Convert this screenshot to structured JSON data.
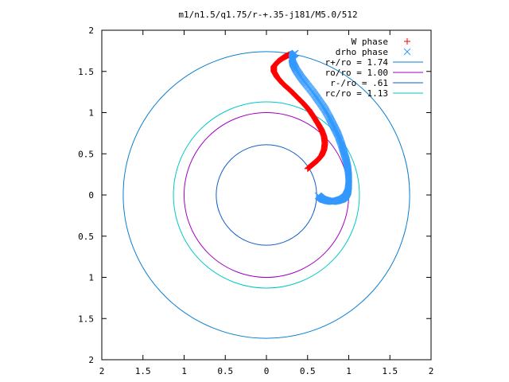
{
  "chart_data": {
    "type": "scatter",
    "title": "m1/n1.5/q1.75/r-+.35-j181/M5.0/512",
    "xlabel": "",
    "ylabel": "",
    "xlim": [
      -2,
      2
    ],
    "ylim": [
      -2,
      2
    ],
    "x_ticks": [
      "2",
      "1.5",
      "1",
      "0.5",
      "0",
      "0.5",
      "1",
      "1.5",
      "2"
    ],
    "y_ticks": [
      "2",
      "1.5",
      "1",
      "0.5",
      "0",
      "0.5",
      "1",
      "1.5",
      "2"
    ],
    "grid": false,
    "legend_position": "top-right",
    "series": [
      {
        "name": "W phase",
        "kind": "points",
        "marker": "plus",
        "color": "#ff0000",
        "points": [
          [
            0.5,
            0.32
          ],
          [
            0.56,
            0.37
          ],
          [
            0.62,
            0.42
          ],
          [
            0.67,
            0.48
          ],
          [
            0.7,
            0.55
          ],
          [
            0.71,
            0.63
          ],
          [
            0.7,
            0.71
          ],
          [
            0.67,
            0.79
          ],
          [
            0.63,
            0.86
          ],
          [
            0.58,
            0.94
          ],
          [
            0.52,
            1.03
          ],
          [
            0.45,
            1.11
          ],
          [
            0.37,
            1.19
          ],
          [
            0.29,
            1.27
          ],
          [
            0.2,
            1.35
          ],
          [
            0.13,
            1.43
          ],
          [
            0.09,
            1.5
          ],
          [
            0.09,
            1.56
          ],
          [
            0.14,
            1.62
          ],
          [
            0.21,
            1.67
          ],
          [
            0.27,
            1.7
          ],
          [
            0.3,
            1.71
          ]
        ]
      },
      {
        "name": "drho phase",
        "kind": "points",
        "marker": "cross",
        "color": "#3399ff",
        "points": [
          [
            0.63,
            -0.01
          ],
          [
            0.68,
            -0.05
          ],
          [
            0.74,
            -0.07
          ],
          [
            0.8,
            -0.08
          ],
          [
            0.86,
            -0.07
          ],
          [
            0.92,
            -0.05
          ],
          [
            0.96,
            -0.02
          ],
          [
            0.99,
            0.04
          ],
          [
            1.0,
            0.12
          ],
          [
            1.0,
            0.22
          ],
          [
            0.99,
            0.32
          ],
          [
            0.97,
            0.42
          ],
          [
            0.94,
            0.52
          ],
          [
            0.91,
            0.62
          ],
          [
            0.87,
            0.73
          ],
          [
            0.82,
            0.83
          ],
          [
            0.77,
            0.93
          ],
          [
            0.71,
            1.04
          ],
          [
            0.64,
            1.14
          ],
          [
            0.57,
            1.24
          ],
          [
            0.49,
            1.34
          ],
          [
            0.42,
            1.43
          ],
          [
            0.36,
            1.52
          ],
          [
            0.32,
            1.6
          ],
          [
            0.31,
            1.66
          ],
          [
            0.32,
            1.7
          ],
          [
            0.35,
            1.72
          ]
        ]
      },
      {
        "name": "r+/ro = 1.74",
        "kind": "circle",
        "radius": 1.74,
        "color": "#0a7fd0"
      },
      {
        "name": "ro/ro = 1.00",
        "kind": "circle",
        "radius": 1.0,
        "color": "#a000c0"
      },
      {
        "name": "r-/ro = .61",
        "kind": "circle",
        "radius": 0.61,
        "color": "#1060c8"
      },
      {
        "name": "rc/ro = 1.13",
        "kind": "circle",
        "radius": 1.13,
        "color": "#00c8c8"
      }
    ]
  }
}
